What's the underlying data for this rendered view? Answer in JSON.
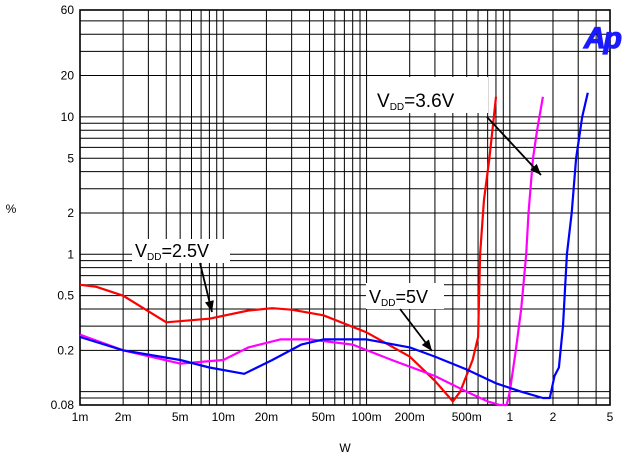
{
  "chart_data": {
    "type": "line",
    "xlabel": "W",
    "ylabel": "%",
    "x_scale": "log",
    "y_scale": "log",
    "xlim": [
      0.001,
      5
    ],
    "ylim": [
      0.08,
      60
    ],
    "grid": true,
    "x_ticks": [
      {
        "value": 0.001,
        "label": "1m"
      },
      {
        "value": 0.002,
        "label": "2m"
      },
      {
        "value": 0.005,
        "label": "5m"
      },
      {
        "value": 0.01,
        "label": "10m"
      },
      {
        "value": 0.02,
        "label": "20m"
      },
      {
        "value": 0.05,
        "label": "50m"
      },
      {
        "value": 0.1,
        "label": "100m"
      },
      {
        "value": 0.2,
        "label": "200m"
      },
      {
        "value": 0.5,
        "label": "500m"
      },
      {
        "value": 1,
        "label": "1"
      },
      {
        "value": 2,
        "label": "2"
      },
      {
        "value": 5,
        "label": "5"
      }
    ],
    "y_ticks": [
      {
        "value": 0.08,
        "label": "0.08"
      },
      {
        "value": 0.2,
        "label": "0.2"
      },
      {
        "value": 0.5,
        "label": "0.5"
      },
      {
        "value": 1,
        "label": "1"
      },
      {
        "value": 2,
        "label": "2"
      },
      {
        "value": 5,
        "label": "5"
      },
      {
        "value": 10,
        "label": "10"
      },
      {
        "value": 20,
        "label": "20"
      },
      {
        "value": 60,
        "label": "60"
      }
    ],
    "series": [
      {
        "name": "VDD=2.5V",
        "color": "#ff0000",
        "points": [
          [
            0.001,
            0.6
          ],
          [
            0.0013,
            0.58
          ],
          [
            0.002,
            0.5
          ],
          [
            0.004,
            0.32
          ],
          [
            0.008,
            0.34
          ],
          [
            0.015,
            0.39
          ],
          [
            0.022,
            0.405
          ],
          [
            0.03,
            0.395
          ],
          [
            0.05,
            0.36
          ],
          [
            0.1,
            0.27
          ],
          [
            0.2,
            0.18
          ],
          [
            0.3,
            0.12
          ],
          [
            0.4,
            0.085
          ],
          [
            0.45,
            0.1
          ],
          [
            0.55,
            0.17
          ],
          [
            0.6,
            0.25
          ],
          [
            0.62,
            1.0
          ],
          [
            0.66,
            2.5
          ],
          [
            0.72,
            5
          ],
          [
            0.8,
            14
          ]
        ]
      },
      {
        "name": "VDD=3.6V",
        "color": "#ff00ff",
        "points": [
          [
            0.001,
            0.26
          ],
          [
            0.002,
            0.2
          ],
          [
            0.005,
            0.16
          ],
          [
            0.01,
            0.17
          ],
          [
            0.015,
            0.21
          ],
          [
            0.025,
            0.24
          ],
          [
            0.04,
            0.24
          ],
          [
            0.08,
            0.22
          ],
          [
            0.15,
            0.17
          ],
          [
            0.3,
            0.13
          ],
          [
            0.5,
            0.1
          ],
          [
            0.7,
            0.085
          ],
          [
            0.85,
            0.08
          ],
          [
            0.95,
            0.08
          ],
          [
            1.0,
            0.1
          ],
          [
            1.1,
            0.2
          ],
          [
            1.2,
            0.4
          ],
          [
            1.3,
            1.0
          ],
          [
            1.35,
            2.0
          ],
          [
            1.45,
            5
          ],
          [
            1.55,
            8
          ],
          [
            1.7,
            14
          ]
        ]
      },
      {
        "name": "VDD=5V",
        "color": "#0000ff",
        "points": [
          [
            0.001,
            0.25
          ],
          [
            0.002,
            0.2
          ],
          [
            0.005,
            0.17
          ],
          [
            0.008,
            0.15
          ],
          [
            0.014,
            0.135
          ],
          [
            0.022,
            0.17
          ],
          [
            0.035,
            0.22
          ],
          [
            0.05,
            0.24
          ],
          [
            0.1,
            0.24
          ],
          [
            0.2,
            0.21
          ],
          [
            0.3,
            0.18
          ],
          [
            0.5,
            0.145
          ],
          [
            0.8,
            0.115
          ],
          [
            1.2,
            0.1
          ],
          [
            1.7,
            0.09
          ],
          [
            1.9,
            0.09
          ],
          [
            2.05,
            0.13
          ],
          [
            2.2,
            0.15
          ],
          [
            2.35,
            0.3
          ],
          [
            2.5,
            1.0
          ],
          [
            2.7,
            2.0
          ],
          [
            2.9,
            5
          ],
          [
            3.2,
            10
          ],
          [
            3.5,
            15
          ]
        ]
      }
    ],
    "annotations": [
      {
        "prefix": "V",
        "sub": "DD",
        "suffix": "=2.5V"
      },
      {
        "prefix": "V",
        "sub": "DD",
        "suffix": "=3.6V"
      },
      {
        "prefix": "V",
        "sub": "DD",
        "suffix": "=5V"
      }
    ],
    "logo_text": "Ap"
  }
}
